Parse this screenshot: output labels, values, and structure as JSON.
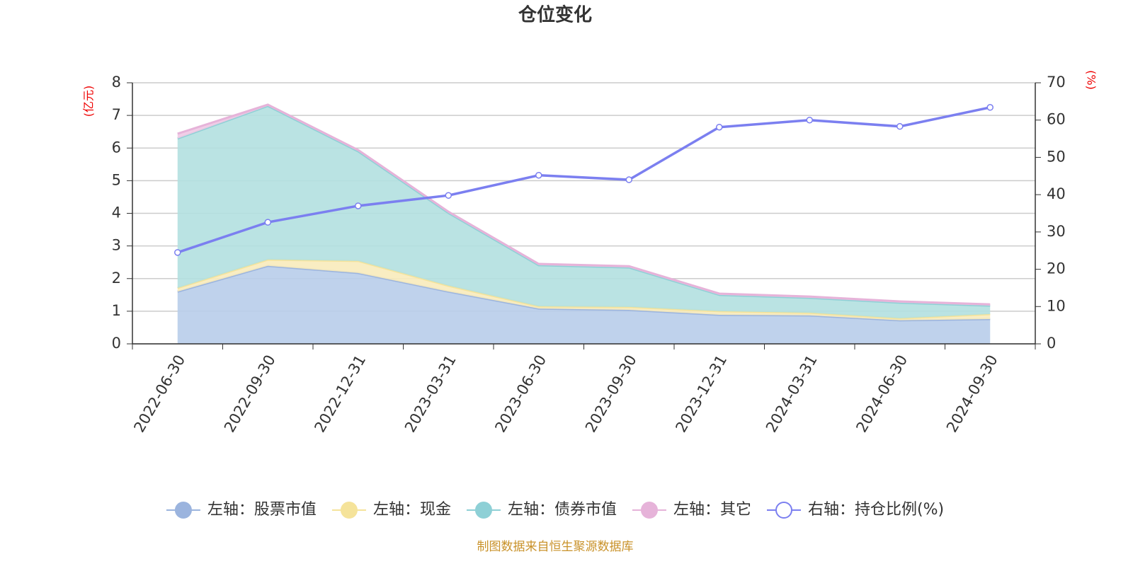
{
  "chart_data": {
    "type": "stacked-area-line",
    "title": "仓位变化",
    "ylabel": "(亿元)",
    "y2label": "(%)",
    "source": "制图数据来自恒生聚源数据库",
    "categories": [
      "2022-06-30",
      "2022-09-30",
      "2022-12-31",
      "2023-03-31",
      "2023-06-30",
      "2023-09-30",
      "2023-12-31",
      "2024-03-31",
      "2024-06-30",
      "2024-09-30"
    ],
    "series": [
      {
        "name": "左轴：股票市值",
        "kind": "area",
        "color": "#9bb4de",
        "fill": "#b8cdea",
        "values": [
          1.6,
          2.39,
          2.17,
          1.6,
          1.08,
          1.04,
          0.89,
          0.87,
          0.72,
          0.76
        ]
      },
      {
        "name": "左轴：现金",
        "kind": "area",
        "color": "#f5e39a",
        "fill": "#f8ebbb",
        "values": [
          0.11,
          0.19,
          0.37,
          0.18,
          0.07,
          0.09,
          0.11,
          0.08,
          0.06,
          0.15
        ]
      },
      {
        "name": "左轴：债券市值",
        "kind": "area",
        "color": "#8ed0d6",
        "fill": "#b3e0e0",
        "values": [
          4.58,
          4.71,
          3.36,
          2.23,
          1.26,
          1.21,
          0.5,
          0.46,
          0.48,
          0.26
        ]
      },
      {
        "name": "左轴：其它",
        "kind": "area",
        "color": "#e6b3d9",
        "fill": "#efc9e4",
        "values": [
          0.15,
          0.04,
          0.04,
          0.04,
          0.04,
          0.04,
          0.04,
          0.04,
          0.04,
          0.04
        ]
      },
      {
        "name": "右轴：持仓比例(%)",
        "kind": "line",
        "axis": "y2",
        "color": "#7b7ff0",
        "values": [
          24.5,
          32.6,
          37.0,
          39.8,
          45.2,
          44.0,
          58.1,
          60.0,
          58.3,
          63.4
        ]
      }
    ],
    "ylim": [
      0,
      8
    ],
    "yticks": [
      0,
      1,
      2,
      3,
      4,
      5,
      6,
      7,
      8
    ],
    "y2lim": [
      0,
      70
    ],
    "y2ticks": [
      0,
      10,
      20,
      30,
      40,
      50,
      60,
      70
    ],
    "grid": true,
    "legend": "bottom"
  }
}
